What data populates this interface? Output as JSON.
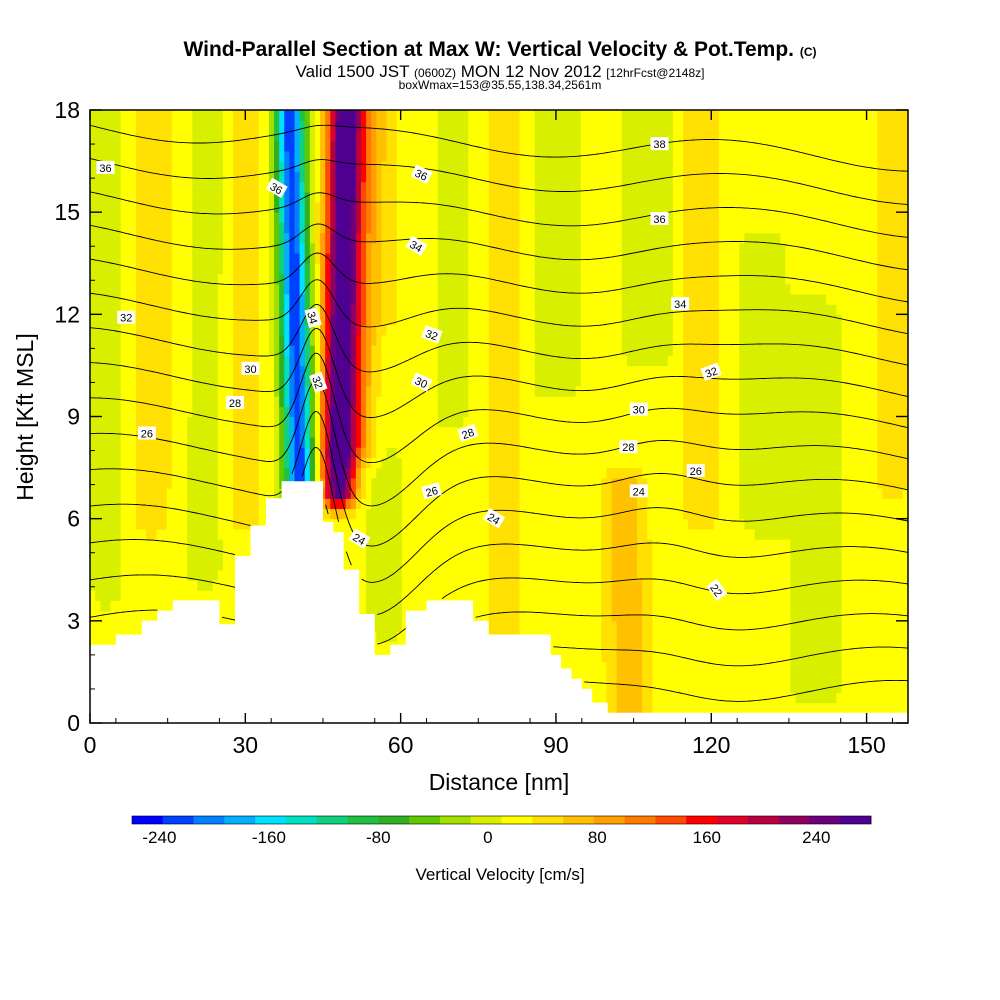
{
  "titles": {
    "main": "Wind-Parallel Section at Max W: Vertical Velocity & Pot.Temp.",
    "main_mark": "(C)",
    "valid_prefix": "Valid 1500 JST",
    "valid_utc": "(0600Z)",
    "valid_date": "MON 12 Nov 2012",
    "forecast": "[12hrFcst@2148z]",
    "box": "boxWmax=153@35.55,138.34,2561m"
  },
  "chart_data": {
    "type": "heatmap",
    "xlabel": "Distance [nm]",
    "ylabel": "Height [Kft MSL]",
    "xlim": [
      0,
      158
    ],
    "ylim": [
      0,
      18
    ],
    "x_ticks": [
      0,
      30,
      60,
      90,
      120,
      150
    ],
    "y_ticks": [
      0,
      3,
      6,
      9,
      12,
      15,
      18
    ],
    "colorbar": {
      "label": "Vertical Velocity [cm/s]",
      "tick_values": [
        -240,
        -160,
        -80,
        0,
        80,
        160,
        240
      ],
      "tick_labels": [
        "-240",
        "-160",
        "-80",
        "0",
        "80",
        "160",
        "240"
      ],
      "range": [
        -260,
        280
      ],
      "colors": [
        "#0000ff",
        "#0040ff",
        "#0080ff",
        "#00b0ff",
        "#00e0ff",
        "#00e0c0",
        "#10d080",
        "#20c040",
        "#30b020",
        "#60c800",
        "#a0e000",
        "#d8f000",
        "#ffff00",
        "#ffe000",
        "#ffc000",
        "#ffa000",
        "#ff7800",
        "#ff4800",
        "#ff0000",
        "#e00028",
        "#b80040",
        "#900060",
        "#6c007c",
        "#500090"
      ]
    },
    "velocity_field": {
      "background": 18,
      "features": [
        {
          "x": 40.5,
          "y0": 7.0,
          "y1": 18,
          "width": 2.8,
          "w": -250,
          "tilt": -0.18
        },
        {
          "x": 48.0,
          "y0": 6.8,
          "y1": 18,
          "width": 3.2,
          "w": 260,
          "tilt": 0.12
        },
        {
          "x": 52.0,
          "y0": 8.0,
          "y1": 18,
          "width": 5.5,
          "w": 60,
          "tilt": 0.1
        },
        {
          "x": 3.0,
          "y0": 4.0,
          "y1": 18,
          "width": 2.5,
          "w": -30,
          "tilt": 0
        },
        {
          "x": 12.0,
          "y0": 6.0,
          "y1": 18,
          "width": 3.5,
          "w": 35,
          "tilt": 0.05
        },
        {
          "x": 22.0,
          "y0": 4.5,
          "y1": 18,
          "width": 3.0,
          "w": -25,
          "tilt": 0.08
        },
        {
          "x": 30.0,
          "y0": 6.0,
          "y1": 18,
          "width": 4.0,
          "w": 25,
          "tilt": 0.05
        },
        {
          "x": 57.0,
          "y0": 3.0,
          "y1": 11.0,
          "width": 3.0,
          "w": -30,
          "tilt": 0
        },
        {
          "x": 70.0,
          "y0": 9.0,
          "y1": 18,
          "width": 4.0,
          "w": -15,
          "tilt": 0.05
        },
        {
          "x": 80.0,
          "y0": 2.5,
          "y1": 18,
          "width": 3.5,
          "w": 30,
          "tilt": 0
        },
        {
          "x": 90.0,
          "y0": 10.0,
          "y1": 18,
          "width": 4.5,
          "w": -25,
          "tilt": 0
        },
        {
          "x": 104.0,
          "y0": 0.5,
          "y1": 7.0,
          "width": 4.0,
          "w": 55,
          "tilt": -0.1
        },
        {
          "x": 108.0,
          "y0": 11.0,
          "y1": 18,
          "width": 4.5,
          "w": -30,
          "tilt": 0
        },
        {
          "x": 118.0,
          "y0": 6.0,
          "y1": 18,
          "width": 4.0,
          "w": 30,
          "tilt": 0
        },
        {
          "x": 130.0,
          "y0": 6.0,
          "y1": 14.0,
          "width": 5.0,
          "w": -20,
          "tilt": 0
        },
        {
          "x": 140.0,
          "y0": 1.0,
          "y1": 12.0,
          "width": 4.5,
          "w": -25,
          "tilt": 0
        },
        {
          "x": 155.0,
          "y0": 7.0,
          "y1": 18,
          "width": 3.5,
          "w": 30,
          "tilt": 0
        }
      ]
    },
    "terrain": [
      [
        0,
        2.3
      ],
      [
        5,
        2.3
      ],
      [
        5,
        2.6
      ],
      [
        10,
        2.6
      ],
      [
        10,
        3.0
      ],
      [
        13,
        3.0
      ],
      [
        13,
        3.3
      ],
      [
        16,
        3.3
      ],
      [
        16,
        3.6
      ],
      [
        25,
        3.6
      ],
      [
        25,
        2.9
      ],
      [
        28,
        2.9
      ],
      [
        28,
        4.9
      ],
      [
        31,
        4.9
      ],
      [
        31,
        5.8
      ],
      [
        34,
        5.8
      ],
      [
        34,
        6.6
      ],
      [
        37,
        6.6
      ],
      [
        37,
        7.1
      ],
      [
        45,
        7.1
      ],
      [
        45,
        5.9
      ],
      [
        47,
        5.9
      ],
      [
        47,
        5.6
      ],
      [
        49,
        5.6
      ],
      [
        49,
        4.5
      ],
      [
        52,
        4.5
      ],
      [
        52,
        3.2
      ],
      [
        55,
        3.2
      ],
      [
        55,
        2.0
      ],
      [
        58,
        2.0
      ],
      [
        58,
        2.3
      ],
      [
        61,
        2.3
      ],
      [
        61,
        3.3
      ],
      [
        65,
        3.3
      ],
      [
        65,
        3.6
      ],
      [
        74,
        3.6
      ],
      [
        74,
        3.0
      ],
      [
        77,
        3.0
      ],
      [
        77,
        2.6
      ],
      [
        89,
        2.6
      ],
      [
        89,
        2.0
      ],
      [
        91,
        2.0
      ],
      [
        91,
        1.6
      ],
      [
        93,
        1.6
      ],
      [
        93,
        1.3
      ],
      [
        95,
        1.3
      ],
      [
        95,
        1.0
      ],
      [
        97,
        1.0
      ],
      [
        97,
        0.6
      ],
      [
        100,
        0.6
      ],
      [
        100,
        0.3
      ],
      [
        158,
        0.3
      ],
      [
        158,
        0
      ],
      [
        0,
        0
      ]
    ],
    "theta_contours": {
      "levels": [
        22,
        23,
        24,
        25,
        26,
        27,
        28,
        29,
        30,
        31,
        32,
        33,
        34,
        35,
        36,
        37,
        38
      ],
      "labels": [
        {
          "text": "36",
          "x": 3,
          "y": 16.3,
          "rot": 0
        },
        {
          "text": "36",
          "x": 36,
          "y": 15.7,
          "rot": 30
        },
        {
          "text": "36",
          "x": 64,
          "y": 16.1,
          "rot": 25
        },
        {
          "text": "38",
          "x": 110,
          "y": 17.0,
          "rot": 0
        },
        {
          "text": "36",
          "x": 110,
          "y": 14.8,
          "rot": 0
        },
        {
          "text": "34",
          "x": 63,
          "y": 14.0,
          "rot": 30
        },
        {
          "text": "34",
          "x": 114,
          "y": 12.3,
          "rot": 0
        },
        {
          "text": "32",
          "x": 7,
          "y": 11.9,
          "rot": 0
        },
        {
          "text": "34",
          "x": 43,
          "y": 11.9,
          "rot": 75
        },
        {
          "text": "32",
          "x": 66,
          "y": 11.4,
          "rot": 20
        },
        {
          "text": "30",
          "x": 31,
          "y": 10.4,
          "rot": 0
        },
        {
          "text": "32",
          "x": 44,
          "y": 10.0,
          "rot": 70
        },
        {
          "text": "30",
          "x": 64,
          "y": 10.0,
          "rot": 25
        },
        {
          "text": "32",
          "x": 120,
          "y": 10.3,
          "rot": -20
        },
        {
          "text": "28",
          "x": 28,
          "y": 9.4,
          "rot": 0
        },
        {
          "text": "30",
          "x": 106,
          "y": 9.2,
          "rot": 0
        },
        {
          "text": "26",
          "x": 11,
          "y": 8.5,
          "rot": 0
        },
        {
          "text": "28",
          "x": 73,
          "y": 8.5,
          "rot": -20
        },
        {
          "text": "28",
          "x": 104,
          "y": 8.1,
          "rot": 0
        },
        {
          "text": "26",
          "x": 117,
          "y": 7.4,
          "rot": 0
        },
        {
          "text": "26",
          "x": 66,
          "y": 6.8,
          "rot": -15
        },
        {
          "text": "24",
          "x": 106,
          "y": 6.8,
          "rot": 0
        },
        {
          "text": "24",
          "x": 78,
          "y": 6.0,
          "rot": 30
        },
        {
          "text": "24",
          "x": 52,
          "y": 5.4,
          "rot": 30
        },
        {
          "text": "22",
          "x": 121,
          "y": 3.9,
          "rot": 55
        }
      ]
    }
  }
}
